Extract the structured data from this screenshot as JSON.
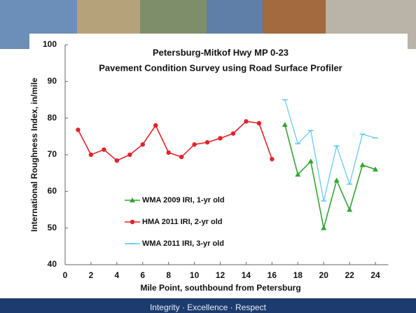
{
  "chart_data": {
    "type": "line",
    "title": "Petersburg-Mitkof Hwy MP 0-23",
    "subtitle": "Pavement Condition Survey using Road Surface Profiler",
    "x_label": "Mile Point, southbound from Petersburg",
    "y_label": "International Roughness Index, in/mile",
    "xlim": [
      0,
      25
    ],
    "xticks": [
      0,
      2,
      4,
      6,
      8,
      10,
      12,
      14,
      16,
      18,
      20,
      22,
      24
    ],
    "ylim": [
      40,
      100
    ],
    "yticks": [
      40,
      50,
      60,
      70,
      80,
      90,
      100
    ],
    "series": [
      {
        "name": "WMA 2009 IRI, 1-yr old",
        "color": "#33a532",
        "marker": "triangle",
        "x": [
          17,
          18,
          19,
          20,
          21,
          22,
          23,
          24
        ],
        "values": [
          78.2,
          64.6,
          68.2,
          50,
          63,
          55,
          67.2,
          66
        ]
      },
      {
        "name": "HMA 2011 IRI, 2-yr old",
        "color": "#e42228",
        "marker": "circle",
        "x": [
          1,
          2,
          3,
          4,
          5,
          6,
          7,
          8,
          9,
          10,
          11,
          12,
          13,
          14,
          15,
          16
        ],
        "values": [
          76.8,
          70,
          71.4,
          68.4,
          70,
          72.8,
          78,
          70.6,
          69.4,
          72.8,
          73.4,
          74.5,
          75.8,
          79.1,
          78.6,
          68.8
        ]
      },
      {
        "name": "WMA 2011 IRI, 3-yr old",
        "color": "#5cc6f2",
        "marker": "dash",
        "x": [
          17,
          18,
          19,
          20,
          21,
          22,
          23,
          24
        ],
        "values": [
          85,
          73,
          76.6,
          57.4,
          72.4,
          62,
          75.6,
          74.6
        ]
      }
    ]
  },
  "footer": "Integrity · Excellence · Respect"
}
